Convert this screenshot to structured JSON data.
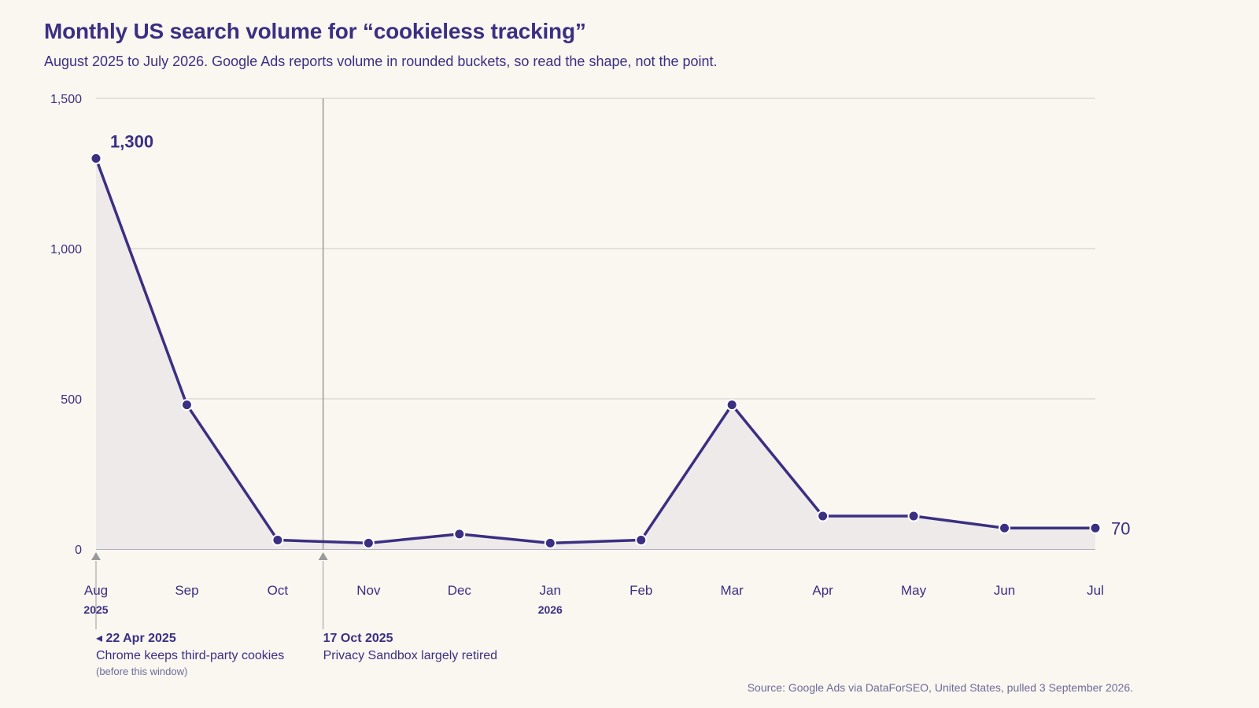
{
  "title": "Monthly US search volume for “cookieless tracking”",
  "subtitle": "August 2025 to July 2026. Google Ads reports volume in rounded buckets, so read the shape, not the point.",
  "source": "Source: Google Ads via DataForSEO, United States, pulled 3 September 2026.",
  "colors": {
    "line": "#3b2f82",
    "area": "#eeeaea",
    "grid": "#dcdad4",
    "axis": "#9a98b4",
    "marker": "#9a9a9a",
    "background": "#faf7f1"
  },
  "chart_data": {
    "type": "line",
    "x": [
      "Aug",
      "Sep",
      "Oct",
      "Nov",
      "Dec",
      "Jan",
      "Feb",
      "Mar",
      "Apr",
      "May",
      "Jun",
      "Jul"
    ],
    "year_labels": [
      {
        "month": "Aug",
        "label": "2025"
      },
      {
        "month": "Jan",
        "label": "2026"
      }
    ],
    "series": [
      {
        "values": [
          1300,
          480,
          30,
          20,
          50,
          20,
          30,
          480,
          110,
          110,
          70,
          70
        ]
      }
    ],
    "ylim": [
      0,
      1500
    ],
    "yticks": [
      0,
      500,
      1000,
      1500
    ],
    "ytick_labels": [
      "0",
      "500",
      "1,000",
      "1,500"
    ],
    "grid": true,
    "area_fill": true,
    "value_labels": [
      {
        "month": "Aug",
        "text": "1,300"
      },
      {
        "month": "Jul",
        "text": "70"
      }
    ],
    "annotations": [
      {
        "at": "Aug",
        "date": "◂ 22 Apr 2025",
        "text": "Chrome keeps third-party cookies",
        "note": "(before this window)",
        "vertical_line": false
      },
      {
        "at_fraction_between": [
          "Oct",
          "Nov",
          0.5
        ],
        "date": "17 Oct 2025",
        "text": "Privacy Sandbox largely retired",
        "note": "",
        "vertical_line": true
      }
    ]
  }
}
